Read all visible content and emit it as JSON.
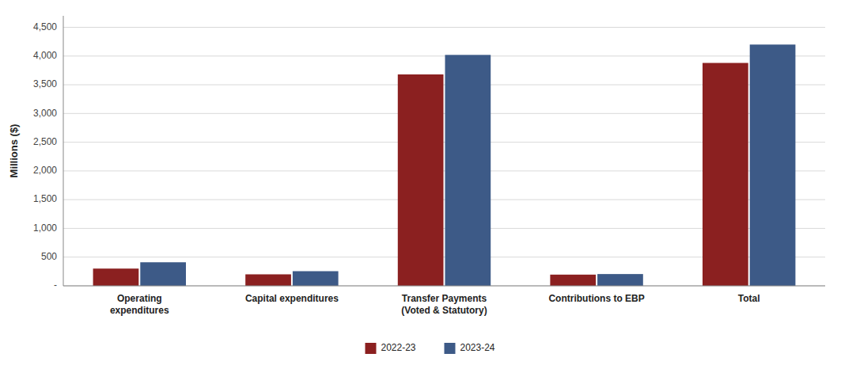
{
  "chart_data": {
    "type": "bar",
    "y_label": "Millions ($)",
    "categories": [
      "Operating\nexpenditures",
      "Capital expenditures",
      "Transfer Payments\n(Voted & Statutory)",
      "Contributions to EBP",
      "Total"
    ],
    "series": [
      {
        "name": "2022-23",
        "color": "#8B2020",
        "values": [
          300,
          200,
          3680,
          195,
          3880
        ]
      },
      {
        "name": "2023-24",
        "color": "#3D5A87",
        "values": [
          410,
          255,
          4020,
          205,
          4200
        ]
      }
    ],
    "ylim": [
      0,
      4700
    ],
    "yticks": [
      {
        "value": 0,
        "label": "-"
      },
      500,
      {
        "value": 1000,
        "label": "1,000"
      },
      {
        "value": 1500,
        "label": "1,500"
      },
      {
        "value": 2000,
        "label": "2,000"
      },
      {
        "value": 2500,
        "label": "2,500"
      },
      {
        "value": 3000,
        "label": "3,000"
      },
      {
        "value": 3500,
        "label": "3,500"
      },
      {
        "value": 4000,
        "label": "4,000"
      },
      {
        "value": 4500,
        "label": "4,500"
      }
    ],
    "grid": true,
    "legend": "bottom"
  }
}
